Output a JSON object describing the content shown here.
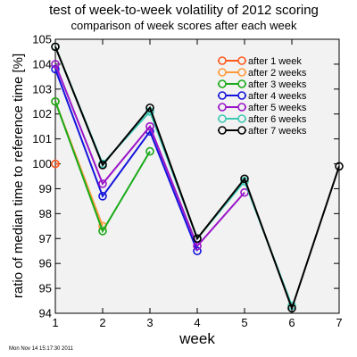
{
  "chart_data": {
    "type": "line",
    "title": "test of week-to-week volatility of 2012 scoring",
    "subtitle": "comparison of week scores after each week",
    "xlabel": "week",
    "ylabel": "ratio of median time to reference time [%]",
    "xlim": [
      1,
      7
    ],
    "ylim": [
      94,
      105
    ],
    "x_ticks": [
      1,
      2,
      3,
      4,
      5,
      6,
      7
    ],
    "y_ticks": [
      94,
      95,
      96,
      97,
      98,
      99,
      100,
      101,
      102,
      103,
      104,
      105
    ],
    "grid": false,
    "plot_background": "#f2f2f2",
    "legend_position": "top-right",
    "series": [
      {
        "name": "after 1 week",
        "color": "#ff5a1e",
        "x": [
          1
        ],
        "y": [
          100.0
        ]
      },
      {
        "name": "after 2 weeks",
        "color": "#ff9a3a",
        "x": [
          1,
          2
        ],
        "y": [
          102.5,
          97.5
        ]
      },
      {
        "name": "after 3 weeks",
        "color": "#1aaa1a",
        "x": [
          1,
          2,
          3
        ],
        "y": [
          102.5,
          97.3,
          100.5
        ]
      },
      {
        "name": "after 4 weeks",
        "color": "#1414dc",
        "x": [
          1,
          2,
          3,
          4
        ],
        "y": [
          103.8,
          98.7,
          101.3,
          96.5
        ]
      },
      {
        "name": "after 5 weeks",
        "color": "#9a14c8",
        "x": [
          1,
          2,
          3,
          4,
          5
        ],
        "y": [
          104.0,
          99.2,
          101.5,
          96.7,
          98.85
        ]
      },
      {
        "name": "after 6 weeks",
        "color": "#3cc8b4",
        "x": [
          1,
          2,
          3,
          4,
          5,
          6
        ],
        "y": [
          104.7,
          100.0,
          102.1,
          97.0,
          99.3,
          94.3
        ]
      },
      {
        "name": "after 7 weeks",
        "color": "#000000",
        "x": [
          1,
          2,
          3,
          4,
          5,
          6,
          7
        ],
        "y": [
          104.7,
          99.95,
          102.25,
          97.0,
          99.4,
          94.2,
          99.9
        ]
      }
    ],
    "timestamp": "Mon Nov 14 15:17:30 2011"
  }
}
